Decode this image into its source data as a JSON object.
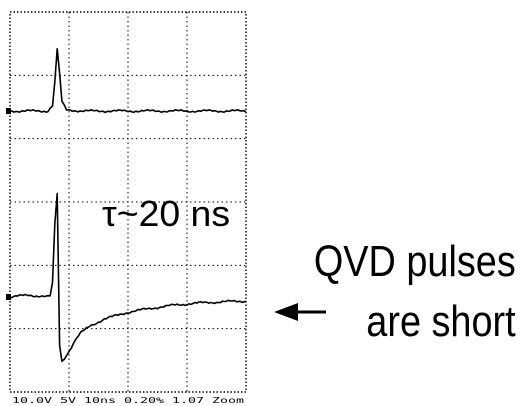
{
  "chart_data": {
    "type": "line",
    "annotation": "τ~20 ns",
    "status_bar": "10.0V  5V  10ns  0.20%  1.07  Zoom",
    "series": [
      {
        "channel": "upper",
        "x": [
          0,
          8,
          16,
          18,
          19,
          20,
          21,
          22,
          24,
          32,
          50,
          80,
          100
        ],
        "y": [
          0,
          0,
          0,
          0.3,
          1.6,
          3.4,
          2.1,
          0.5,
          0.05,
          0,
          0,
          0,
          0
        ]
      },
      {
        "channel": "lower",
        "x": [
          0,
          8,
          16,
          17,
          18,
          19,
          20,
          21,
          22,
          24,
          26,
          28,
          30,
          34,
          40,
          50,
          60,
          70,
          80,
          90,
          100
        ],
        "y": [
          0,
          0.05,
          0.0,
          0.02,
          0.35,
          1.8,
          2.6,
          -1.2,
          -1.6,
          -1.45,
          -1.25,
          -1.05,
          -0.9,
          -0.72,
          -0.55,
          -0.38,
          -0.28,
          -0.2,
          -0.15,
          -0.12,
          -0.1
        ]
      }
    ],
    "grid": "dotted",
    "xlim": [
      0,
      100
    ]
  },
  "callout": {
    "line1": "QVD pulses",
    "line2": "are short",
    "arrow_icon": "arrow-left-icon"
  },
  "colors": {
    "trace": "#000000",
    "grid": "#000000",
    "background": "#ffffff"
  }
}
